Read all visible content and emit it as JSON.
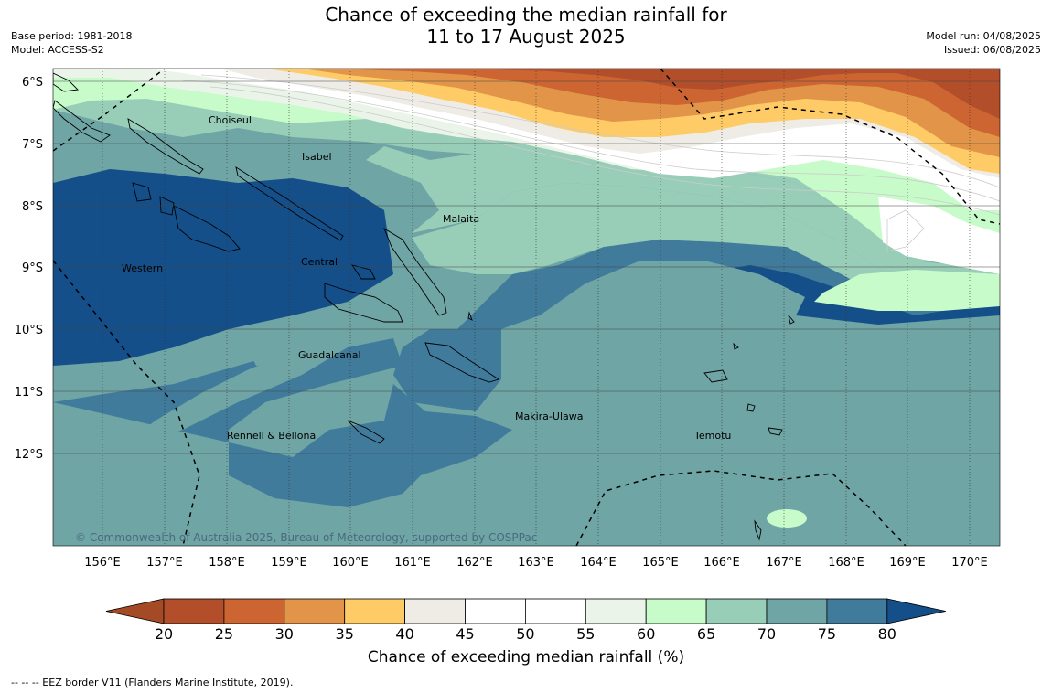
{
  "title": {
    "line1": "Chance of exceeding the median rainfall for",
    "line2": "11 to 17 August 2025"
  },
  "meta_left": {
    "base_period": "Base period: 1981-2018",
    "model": "Model: ACCESS-S2"
  },
  "meta_right": {
    "model_run": "Model run: 04/08/2025",
    "issued": "Issued: 06/08/2025"
  },
  "copyright": "© Commonwealth of Australia 2025, Bureau of Meteorology, supported by COSPPac",
  "lat_labels": [
    "6°S",
    "7°S",
    "8°S",
    "9°S",
    "10°S",
    "11°S",
    "12°S"
  ],
  "lon_labels": [
    "156°E",
    "157°E",
    "158°E",
    "159°E",
    "160°E",
    "161°E",
    "162°E",
    "163°E",
    "164°E",
    "165°E",
    "166°E",
    "167°E",
    "168°E",
    "169°E",
    "170°E"
  ],
  "regions": [
    "Choiseul",
    "Isabel",
    "Malaita",
    "Western",
    "Central",
    "Guadalcanal",
    "Makira-Ulawa",
    "Rennell & Bellona",
    "Temotu"
  ],
  "colorbar": {
    "ticks": [
      "20",
      "25",
      "30",
      "35",
      "40",
      "45",
      "50",
      "55",
      "60",
      "65",
      "70",
      "75",
      "80"
    ],
    "colors": [
      "#a44a25",
      "#b24f2a",
      "#cc6532",
      "#e29449",
      "#fecb66",
      "#efece6",
      "#ffffff",
      "#ffffff",
      "#eaf4e9",
      "#c7fbc9",
      "#98cdb8",
      "#6fa5a5",
      "#417b9c",
      "#154f8a"
    ],
    "label": "Chance of exceeding median rainfall (%)"
  },
  "eez_note": "--  --  -- EEZ border V11 (Flanders Marine Institute, 2019)."
}
